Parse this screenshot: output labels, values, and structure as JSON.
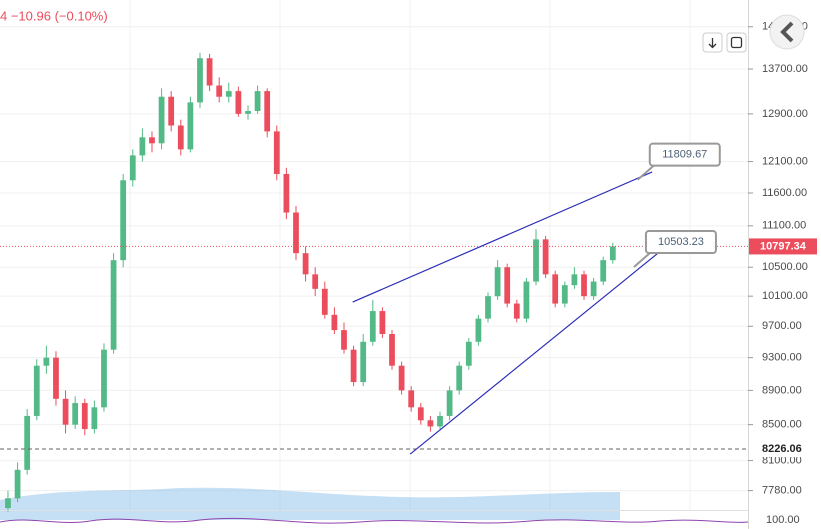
{
  "chart_data": {
    "type": "candlestick",
    "header": "4  −10.96 (−0.10%)",
    "scale": "log",
    "up_color": "#53b987",
    "down_color": "#eb4d5c",
    "ohlc": [
      [
        7600,
        7780,
        7560,
        7700
      ],
      [
        7700,
        8080,
        7660,
        8000
      ],
      [
        8000,
        8680,
        7950,
        8600
      ],
      [
        8600,
        9280,
        8550,
        9200
      ],
      [
        9200,
        9450,
        9100,
        9300
      ],
      [
        9300,
        9380,
        8720,
        8800
      ],
      [
        8800,
        8900,
        8400,
        8500
      ],
      [
        8500,
        8830,
        8450,
        8750
      ],
      [
        8750,
        8800,
        8380,
        8450
      ],
      [
        8450,
        8780,
        8400,
        8700
      ],
      [
        8700,
        9480,
        8650,
        9400
      ],
      [
        9400,
        10700,
        9350,
        10600
      ],
      [
        10600,
        11900,
        10500,
        11800
      ],
      [
        11800,
        12300,
        11700,
        12200
      ],
      [
        12200,
        12650,
        12100,
        12500
      ],
      [
        12500,
        12600,
        12250,
        12400
      ],
      [
        12400,
        13350,
        12300,
        13200
      ],
      [
        13200,
        13300,
        12600,
        12700
      ],
      [
        12700,
        12800,
        12200,
        12300
      ],
      [
        12300,
        13200,
        12250,
        13100
      ],
      [
        13100,
        14000,
        13000,
        13900
      ],
      [
        13900,
        13980,
        13300,
        13400
      ],
      [
        13400,
        13550,
        13100,
        13200
      ],
      [
        13200,
        13450,
        13100,
        13300
      ],
      [
        13300,
        13380,
        12850,
        12900
      ],
      [
        12900,
        13050,
        12800,
        12950
      ],
      [
        12950,
        13400,
        12900,
        13300
      ],
      [
        13300,
        13350,
        12500,
        12600
      ],
      [
        12600,
        12700,
        11800,
        11900
      ],
      [
        11900,
        12000,
        11200,
        11300
      ],
      [
        11300,
        11400,
        10600,
        10700
      ],
      [
        10700,
        10800,
        10300,
        10400
      ],
      [
        10400,
        10500,
        10100,
        10200
      ],
      [
        10200,
        10300,
        9800,
        9850
      ],
      [
        9850,
        9950,
        9600,
        9650
      ],
      [
        9650,
        9750,
        9350,
        9400
      ],
      [
        9400,
        9450,
        8950,
        9000
      ],
      [
        9000,
        9600,
        8950,
        9500
      ],
      [
        9500,
        10050,
        9450,
        9900
      ],
      [
        9900,
        9950,
        9550,
        9600
      ],
      [
        9600,
        9650,
        9150,
        9200
      ],
      [
        9200,
        9250,
        8850,
        8900
      ],
      [
        8900,
        8950,
        8650,
        8700
      ],
      [
        8700,
        8750,
        8500,
        8550
      ],
      [
        8550,
        8600,
        8420,
        8480
      ],
      [
        8480,
        8650,
        8450,
        8600
      ],
      [
        8600,
        8950,
        8550,
        8900
      ],
      [
        8900,
        9250,
        8850,
        9200
      ],
      [
        9200,
        9550,
        9150,
        9500
      ],
      [
        9500,
        9850,
        9450,
        9800
      ],
      [
        9800,
        10150,
        9750,
        10100
      ],
      [
        10100,
        10600,
        10050,
        10500
      ],
      [
        10500,
        10550,
        9950,
        10000
      ],
      [
        10000,
        10050,
        9750,
        9800
      ],
      [
        9800,
        10350,
        9750,
        10300
      ],
      [
        10300,
        11050,
        10250,
        10900
      ],
      [
        10900,
        10950,
        10350,
        10400
      ],
      [
        10400,
        10450,
        9950,
        10000
      ],
      [
        10000,
        10300,
        9950,
        10250
      ],
      [
        10250,
        10500,
        10200,
        10400
      ],
      [
        10400,
        10450,
        10050,
        10100
      ],
      [
        10100,
        10350,
        10050,
        10300
      ],
      [
        10300,
        10650,
        10250,
        10600
      ],
      [
        10600,
        10850,
        10550,
        10797.34
      ]
    ],
    "xlim": [
      -0.83,
      77.08
    ],
    "ylim": [
      7580,
      15030
    ],
    "yticks": [
      {
        "value": 14500,
        "label": "14500.00"
      },
      {
        "value": 13700,
        "label": "13700.00"
      },
      {
        "value": 12900,
        "label": "12900.00"
      },
      {
        "value": 12100,
        "label": "12100.00"
      },
      {
        "value": 11600,
        "label": "11600.00"
      },
      {
        "value": 11100,
        "label": "11100.00"
      },
      {
        "value": 10500,
        "label": "10500.00"
      },
      {
        "value": 10100,
        "label": "10100.00"
      },
      {
        "value": 9700,
        "label": "9700.00"
      },
      {
        "value": 9300,
        "label": "9300.00"
      },
      {
        "value": 8900,
        "label": "8900.00"
      },
      {
        "value": 8500,
        "label": "8500.00"
      },
      {
        "value": 8100,
        "label": "8100.00"
      },
      {
        "value": 7780,
        "label": "7780.00"
      }
    ],
    "last_price": 10797.34,
    "last_price_color": "#eb4d5c",
    "marked_price": 8226.06,
    "trendlines": [
      {
        "color": "#2d2db8",
        "x": [
          35.9,
          67.1
        ],
        "y": [
          10020,
          11932
        ]
      },
      {
        "color": "#2d2db8",
        "x": [
          41.9,
          67.7
        ],
        "y": [
          8171,
          10700
        ]
      }
    ],
    "annotations": [
      {
        "x": 65.6,
        "y": 11809.67,
        "text": 11809.67
      },
      {
        "x": 65.2,
        "y": 10503.23,
        "text": 10503.23
      }
    ],
    "lower_pane_tick": "100.00"
  }
}
